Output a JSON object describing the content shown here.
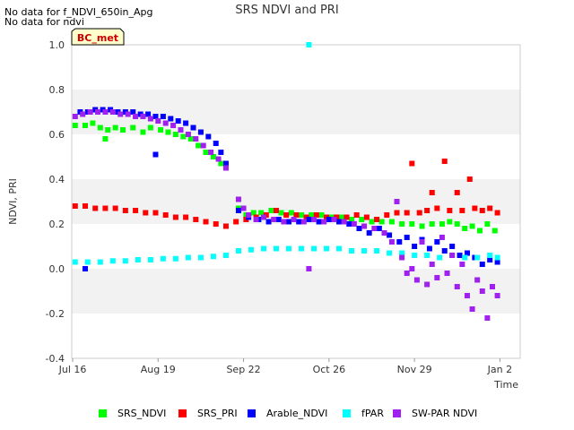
{
  "notices": [
    "No data for f_NDVI_650in_Apg",
    "No data for ndvi"
  ],
  "site_badge": "BC_met",
  "chart_data": {
    "type": "scatter",
    "title": "SRS NDVI and PRI",
    "xlabel": "Time",
    "ylabel": "NDVI, PRI",
    "ylim": [
      -0.4,
      1.0
    ],
    "yticks": [
      "1.0",
      "0.8",
      "0.6",
      "0.4",
      "0.2",
      "0.0",
      "-0.2",
      "-0.4"
    ],
    "xticks": [
      "Jul 16",
      "Aug 19",
      "Sep 22",
      "Oct 26",
      "Nov 29",
      "Jan 2"
    ],
    "xlim_days": [
      0,
      172
    ],
    "grid": "alternating horizontal bands",
    "series": [
      {
        "name": "SRS_NDVI",
        "color": "#00ff00",
        "points": [
          [
            1,
            0.64
          ],
          [
            5,
            0.64
          ],
          [
            8,
            0.65
          ],
          [
            11,
            0.63
          ],
          [
            13,
            0.58
          ],
          [
            14,
            0.62
          ],
          [
            17,
            0.63
          ],
          [
            20,
            0.62
          ],
          [
            24,
            0.63
          ],
          [
            28,
            0.61
          ],
          [
            31,
            0.63
          ],
          [
            35,
            0.62
          ],
          [
            38,
            0.61
          ],
          [
            41,
            0.6
          ],
          [
            44,
            0.59
          ],
          [
            47,
            0.58
          ],
          [
            50,
            0.55
          ],
          [
            53,
            0.52
          ],
          [
            56,
            0.5
          ],
          [
            59,
            0.47
          ],
          [
            61,
            0.46
          ],
          [
            66,
            0.27
          ],
          [
            69,
            0.24
          ],
          [
            72,
            0.25
          ],
          [
            75,
            0.25
          ],
          [
            79,
            0.26
          ],
          [
            83,
            0.25
          ],
          [
            87,
            0.25
          ],
          [
            91,
            0.24
          ],
          [
            95,
            0.24
          ],
          [
            99,
            0.24
          ],
          [
            103,
            0.23
          ],
          [
            107,
            0.23
          ],
          [
            111,
            0.22
          ],
          [
            115,
            0.22
          ],
          [
            119,
            0.21
          ],
          [
            123,
            0.21
          ],
          [
            127,
            0.21
          ],
          [
            131,
            0.2
          ],
          [
            135,
            0.2
          ],
          [
            139,
            0.19
          ],
          [
            143,
            0.2
          ],
          [
            147,
            0.2
          ],
          [
            150,
            0.21
          ],
          [
            153,
            0.2
          ],
          [
            156,
            0.18
          ],
          [
            159,
            0.19
          ],
          [
            162,
            0.17
          ],
          [
            165,
            0.2
          ],
          [
            168,
            0.17
          ]
        ]
      },
      {
        "name": "SRS_PRI",
        "color": "#ff0000",
        "points": [
          [
            1,
            0.28
          ],
          [
            5,
            0.28
          ],
          [
            9,
            0.27
          ],
          [
            13,
            0.27
          ],
          [
            17,
            0.27
          ],
          [
            21,
            0.26
          ],
          [
            25,
            0.26
          ],
          [
            29,
            0.25
          ],
          [
            33,
            0.25
          ],
          [
            37,
            0.24
          ],
          [
            41,
            0.23
          ],
          [
            45,
            0.23
          ],
          [
            49,
            0.22
          ],
          [
            53,
            0.21
          ],
          [
            57,
            0.2
          ],
          [
            61,
            0.19
          ],
          [
            65,
            0.21
          ],
          [
            69,
            0.22
          ],
          [
            73,
            0.23
          ],
          [
            77,
            0.24
          ],
          [
            81,
            0.26
          ],
          [
            85,
            0.24
          ],
          [
            89,
            0.24
          ],
          [
            93,
            0.23
          ],
          [
            97,
            0.24
          ],
          [
            101,
            0.23
          ],
          [
            105,
            0.23
          ],
          [
            109,
            0.23
          ],
          [
            113,
            0.24
          ],
          [
            117,
            0.23
          ],
          [
            121,
            0.22
          ],
          [
            125,
            0.24
          ],
          [
            129,
            0.25
          ],
          [
            133,
            0.25
          ],
          [
            135,
            0.47
          ],
          [
            138,
            0.25
          ],
          [
            141,
            0.26
          ],
          [
            143,
            0.34
          ],
          [
            145,
            0.27
          ],
          [
            148,
            0.48
          ],
          [
            150,
            0.26
          ],
          [
            153,
            0.34
          ],
          [
            155,
            0.26
          ],
          [
            158,
            0.4
          ],
          [
            160,
            0.27
          ],
          [
            163,
            0.26
          ],
          [
            166,
            0.27
          ],
          [
            169,
            0.25
          ]
        ]
      },
      {
        "name": "Arable_NDVI",
        "color": "#0000ff",
        "points": [
          [
            3,
            0.7
          ],
          [
            6,
            0.7
          ],
          [
            9,
            0.71
          ],
          [
            12,
            0.71
          ],
          [
            15,
            0.71
          ],
          [
            18,
            0.7
          ],
          [
            21,
            0.7
          ],
          [
            24,
            0.7
          ],
          [
            27,
            0.69
          ],
          [
            30,
            0.69
          ],
          [
            33,
            0.68
          ],
          [
            33,
            0.51
          ],
          [
            36,
            0.68
          ],
          [
            39,
            0.67
          ],
          [
            42,
            0.66
          ],
          [
            45,
            0.65
          ],
          [
            48,
            0.63
          ],
          [
            51,
            0.61
          ],
          [
            54,
            0.59
          ],
          [
            57,
            0.56
          ],
          [
            59,
            0.52
          ],
          [
            61,
            0.47
          ],
          [
            66,
            0.26
          ],
          [
            70,
            0.23
          ],
          [
            74,
            0.22
          ],
          [
            78,
            0.21
          ],
          [
            82,
            0.22
          ],
          [
            86,
            0.21
          ],
          [
            90,
            0.21
          ],
          [
            94,
            0.22
          ],
          [
            98,
            0.21
          ],
          [
            102,
            0.22
          ],
          [
            106,
            0.21
          ],
          [
            110,
            0.2
          ],
          [
            114,
            0.18
          ],
          [
            118,
            0.16
          ],
          [
            122,
            0.18
          ],
          [
            126,
            0.15
          ],
          [
            130,
            0.12
          ],
          [
            133,
            0.14
          ],
          [
            136,
            0.1
          ],
          [
            139,
            0.13
          ],
          [
            142,
            0.09
          ],
          [
            145,
            0.12
          ],
          [
            148,
            0.08
          ],
          [
            151,
            0.1
          ],
          [
            154,
            0.06
          ],
          [
            157,
            0.07
          ],
          [
            160,
            0.05
          ],
          [
            163,
            0.02
          ],
          [
            166,
            0.04
          ],
          [
            169,
            0.03
          ],
          [
            5,
            0.0
          ]
        ]
      },
      {
        "name": "fPAR",
        "color": "#00ffff",
        "points": [
          [
            1,
            0.03
          ],
          [
            6,
            0.03
          ],
          [
            11,
            0.03
          ],
          [
            16,
            0.035
          ],
          [
            21,
            0.035
          ],
          [
            26,
            0.04
          ],
          [
            31,
            0.04
          ],
          [
            36,
            0.045
          ],
          [
            41,
            0.045
          ],
          [
            46,
            0.05
          ],
          [
            51,
            0.05
          ],
          [
            56,
            0.055
          ],
          [
            61,
            0.06
          ],
          [
            66,
            0.08
          ],
          [
            71,
            0.085
          ],
          [
            76,
            0.09
          ],
          [
            81,
            0.09
          ],
          [
            86,
            0.09
          ],
          [
            91,
            0.09
          ],
          [
            94,
            1.0
          ],
          [
            96,
            0.09
          ],
          [
            101,
            0.09
          ],
          [
            106,
            0.09
          ],
          [
            111,
            0.08
          ],
          [
            116,
            0.08
          ],
          [
            121,
            0.08
          ],
          [
            126,
            0.07
          ],
          [
            131,
            0.07
          ],
          [
            136,
            0.06
          ],
          [
            141,
            0.06
          ],
          [
            146,
            0.05
          ],
          [
            151,
            0.06
          ],
          [
            156,
            0.05
          ],
          [
            161,
            0.05
          ],
          [
            166,
            0.06
          ],
          [
            169,
            0.05
          ]
        ]
      },
      {
        "name": "SW-PAR NDVI",
        "color": "#a020f0",
        "points": [
          [
            1,
            0.68
          ],
          [
            4,
            0.69
          ],
          [
            7,
            0.7
          ],
          [
            10,
            0.7
          ],
          [
            13,
            0.7
          ],
          [
            16,
            0.7
          ],
          [
            19,
            0.69
          ],
          [
            22,
            0.69
          ],
          [
            25,
            0.68
          ],
          [
            28,
            0.68
          ],
          [
            31,
            0.67
          ],
          [
            34,
            0.66
          ],
          [
            37,
            0.65
          ],
          [
            40,
            0.64
          ],
          [
            43,
            0.62
          ],
          [
            46,
            0.6
          ],
          [
            49,
            0.58
          ],
          [
            52,
            0.55
          ],
          [
            55,
            0.52
          ],
          [
            58,
            0.49
          ],
          [
            61,
            0.45
          ],
          [
            66,
            0.31
          ],
          [
            68,
            0.27
          ],
          [
            70,
            0.24
          ],
          [
            73,
            0.22
          ],
          [
            76,
            0.23
          ],
          [
            80,
            0.22
          ],
          [
            84,
            0.21
          ],
          [
            88,
            0.22
          ],
          [
            92,
            0.21
          ],
          [
            94,
            0.0
          ],
          [
            96,
            0.22
          ],
          [
            100,
            0.21
          ],
          [
            104,
            0.22
          ],
          [
            108,
            0.21
          ],
          [
            112,
            0.2
          ],
          [
            116,
            0.19
          ],
          [
            120,
            0.18
          ],
          [
            124,
            0.16
          ],
          [
            127,
            0.12
          ],
          [
            129,
            0.3
          ],
          [
            131,
            0.05
          ],
          [
            133,
            -0.02
          ],
          [
            135,
            0.0
          ],
          [
            137,
            -0.05
          ],
          [
            139,
            0.12
          ],
          [
            141,
            -0.07
          ],
          [
            143,
            0.02
          ],
          [
            145,
            -0.04
          ],
          [
            147,
            0.14
          ],
          [
            149,
            -0.02
          ],
          [
            151,
            0.06
          ],
          [
            153,
            -0.08
          ],
          [
            155,
            0.02
          ],
          [
            157,
            -0.12
          ],
          [
            159,
            -0.18
          ],
          [
            161,
            -0.05
          ],
          [
            163,
            -0.1
          ],
          [
            165,
            -0.22
          ],
          [
            167,
            -0.08
          ],
          [
            169,
            -0.12
          ]
        ]
      }
    ]
  }
}
